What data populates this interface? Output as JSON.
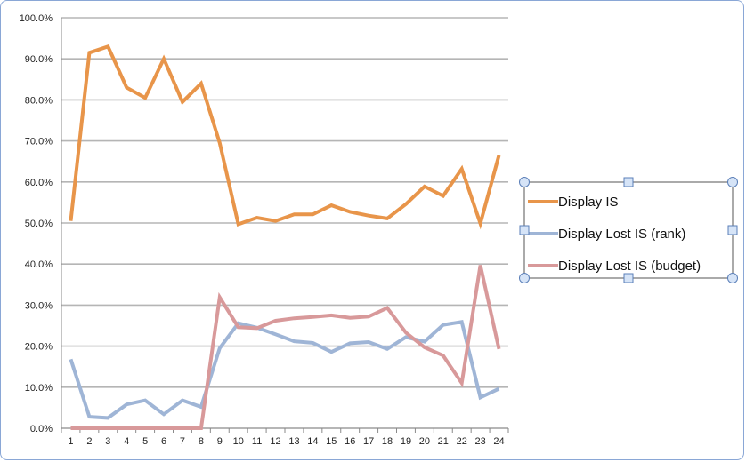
{
  "chart_data": {
    "type": "line",
    "title": "",
    "xlabel": "",
    "ylabel": "",
    "categories": [
      "1",
      "2",
      "3",
      "4",
      "5",
      "6",
      "7",
      "8",
      "9",
      "10",
      "11",
      "12",
      "13",
      "14",
      "15",
      "16",
      "17",
      "18",
      "19",
      "20",
      "21",
      "22",
      "23",
      "24"
    ],
    "ylim": [
      0,
      100
    ],
    "y_ticks": [
      "0.0%",
      "10.0%",
      "20.0%",
      "30.0%",
      "40.0%",
      "50.0%",
      "60.0%",
      "70.0%",
      "80.0%",
      "90.0%",
      "100.0%"
    ],
    "grid": "horizontal",
    "legend_position": "right",
    "series": [
      {
        "name": "Display IS",
        "color": "#e8954a",
        "values": [
          50.5,
          91.5,
          93.0,
          83.0,
          80.5,
          90.0,
          79.5,
          84.0,
          69.5,
          49.7,
          51.3,
          50.5,
          52.1,
          52.1,
          54.3,
          52.7,
          51.8,
          51.1,
          54.6,
          58.9,
          56.6,
          63.2,
          49.9,
          66.5
        ]
      },
      {
        "name": "Display Lost IS (rank)",
        "color": "#9fb5d6",
        "values": [
          16.8,
          2.8,
          2.5,
          5.8,
          6.8,
          3.4,
          6.8,
          5.2,
          19.5,
          25.6,
          24.5,
          22.9,
          21.2,
          20.8,
          18.6,
          20.7,
          21.0,
          19.3,
          22.2,
          21.1,
          25.2,
          25.9,
          7.5,
          9.6
        ]
      },
      {
        "name": "Display Lost IS (budget)",
        "color": "#d8999a",
        "values": [
          0.0,
          0.0,
          0.0,
          0.0,
          0.0,
          0.0,
          0.0,
          0.0,
          31.9,
          24.6,
          24.4,
          26.2,
          26.8,
          27.1,
          27.5,
          26.9,
          27.2,
          29.3,
          23.3,
          19.7,
          17.7,
          11.0,
          39.7,
          19.3
        ]
      }
    ]
  }
}
